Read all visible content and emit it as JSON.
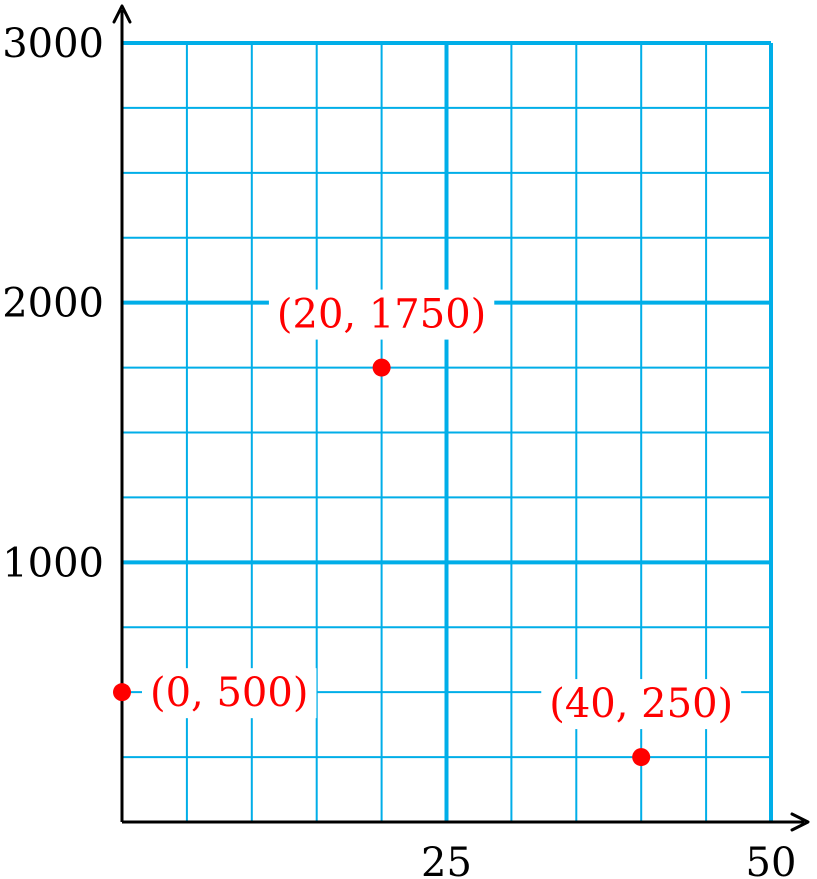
{
  "chart_data": {
    "type": "scatter",
    "title": "",
    "xlabel": "",
    "ylabel": "",
    "xlim": [
      0,
      50
    ],
    "ylim": [
      0,
      3000
    ],
    "x_ticks": [
      {
        "value": 25,
        "label": "25"
      },
      {
        "value": 50,
        "label": "50"
      }
    ],
    "y_ticks": [
      {
        "value": 1000,
        "label": "1000"
      },
      {
        "value": 2000,
        "label": "2000"
      },
      {
        "value": 3000,
        "label": "3000"
      }
    ],
    "grid": true,
    "grid_minor_x_step": 5,
    "grid_minor_y_step": 250,
    "grid_major_x_step": 25,
    "grid_major_y_step": 1000,
    "points": [
      {
        "x": 0,
        "y": 500,
        "label": "(0, 500)",
        "label_side": "right"
      },
      {
        "x": 20,
        "y": 1750,
        "label": "(20, 1750)",
        "label_side": "above"
      },
      {
        "x": 40,
        "y": 250,
        "label": "(40, 250)",
        "label_side": "above"
      }
    ],
    "colors": {
      "grid": "#00aee8",
      "point": "#ff0000",
      "axis": "#000000"
    }
  }
}
